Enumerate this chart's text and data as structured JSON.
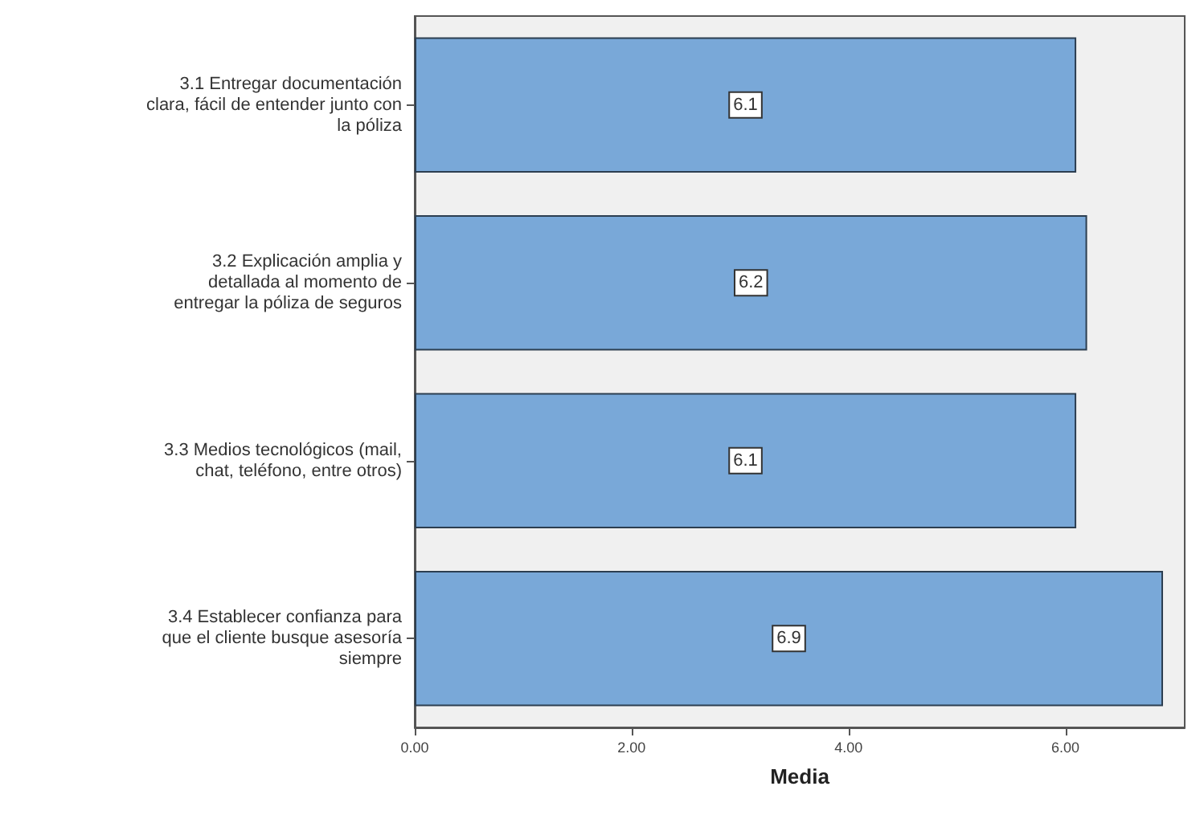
{
  "chart_data": {
    "type": "bar",
    "orientation": "horizontal",
    "xlabel": "Media",
    "categories": [
      "3.1 Entregar documentación\nclara, fácil de entender junto con\nla póliza",
      "3.2 Explicación amplia y\ndetallada al momento de\nentregar la póliza de seguros",
      "3.3 Medios tecnológicos (mail,\nchat, teléfono, entre otros)",
      "3.4 Establecer confianza para\nque el cliente busque asesoría\nsiempre"
    ],
    "values": [
      6.1,
      6.2,
      6.1,
      6.9
    ],
    "color": "#79a8d8",
    "data_labels": true,
    "xlim": [
      0,
      7.1
    ],
    "xticks": [
      {
        "value": 0,
        "label": "0.00"
      },
      {
        "value": 2,
        "label": "2.00"
      },
      {
        "value": 4,
        "label": "4.00"
      },
      {
        "value": 6,
        "label": "6.00"
      }
    ],
    "grid": false
  }
}
